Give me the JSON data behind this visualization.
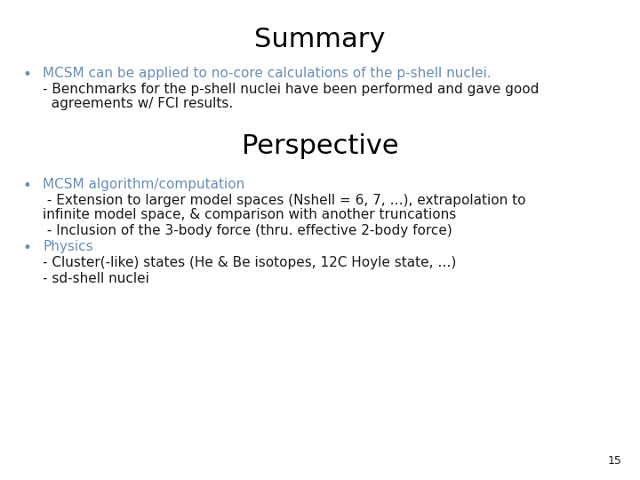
{
  "background_color": "#ffffff",
  "title_summary": "Summary",
  "title_perspective": "Perspective",
  "title_fontsize": 22,
  "title_color": "#000000",
  "bullet_color": "#6a8fb5",
  "body_color": "#1a1a1a",
  "page_number": "15",
  "summary_bullet1": "MCSM can be applied to no-core calculations of the p-shell nuclei.",
  "summary_sub1a": "- Benchmarks for the p-shell nuclei have been performed and gave good",
  "summary_sub1b": "  agreements w/ FCI results.",
  "perspective_bullet1": "MCSM algorithm/computation",
  "perspective_sub1a": " - Extension to larger model spaces (Nshell = 6, 7, …), extrapolation to",
  "perspective_sub1b": "infinite model space, & comparison with another truncations",
  "perspective_sub2": " - Inclusion of the 3-body force (thru. effective 2-body force)",
  "perspective_bullet2": "Physics",
  "perspective_sub3": "- Cluster(-like) states (He & Be isotopes, 12C Hoyle state, …)",
  "perspective_sub4": "- sd-shell nuclei",
  "body_fontsize": 11,
  "bullet_fontsize": 12,
  "page_fontsize": 9
}
